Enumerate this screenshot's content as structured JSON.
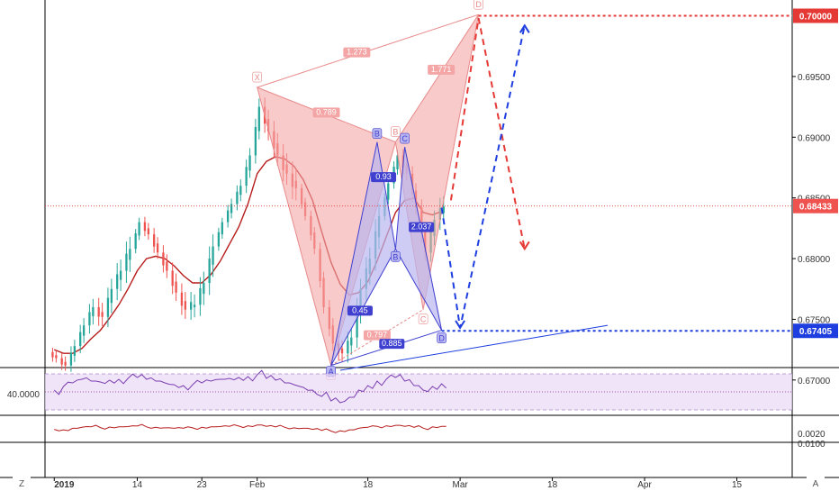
{
  "colors": {
    "up": "#26a69a",
    "down": "#ef5350",
    "ma": "#b71c1c",
    "pattern_fill": "#f4a6a6",
    "pattern_edge": "#e88a8a",
    "abcd_fill": "#b9b6ef",
    "abcd_edge": "#3f3fd0",
    "target_red": "#e53935",
    "target_blue": "#1e3ee0",
    "rsi_band": "#e9d9f7"
  },
  "chart_data": [
    {
      "type": "candlestick",
      "title": "",
      "price_axis": {
        "ticks": [
          "0.70000",
          "0.69500",
          "0.69000",
          "0.68500",
          "0.68000",
          "0.67500",
          "0.67000"
        ],
        "tick_values": [
          0.7,
          0.695,
          0.69,
          0.685,
          0.68,
          0.675,
          0.67
        ],
        "ylim": [
          0.6711,
          0.7013
        ]
      },
      "price_labels": [
        {
          "text": "0.70000",
          "value": 0.7,
          "color": "#e53935"
        },
        {
          "text": "0.68433",
          "value": 0.68433,
          "color": "#ef5350"
        },
        {
          "text": "0.67405",
          "value": 0.67405,
          "color": "#1e3ee0"
        }
      ],
      "time_axis": {
        "ticks": [
          {
            "label": "2019",
            "bold": true,
            "index": 0
          },
          {
            "label": "14",
            "index": 9
          },
          {
            "label": "23",
            "index": 16
          },
          {
            "label": "Feb",
            "index": 22
          },
          {
            "label": "18",
            "index": 34
          },
          {
            "label": "Mar",
            "index": 44
          },
          {
            "label": "18",
            "index": 54
          },
          {
            "label": "Apr",
            "index": 64
          },
          {
            "label": "15",
            "index": 74
          }
        ],
        "xlim": [
          -1,
          80
        ]
      },
      "close": [
        0.6718,
        0.6712,
        0.6728,
        0.6745,
        0.676,
        0.6752,
        0.6775,
        0.679,
        0.6808,
        0.683,
        0.682,
        0.6805,
        0.679,
        0.6772,
        0.6758,
        0.6762,
        0.678,
        0.681,
        0.683,
        0.6845,
        0.686,
        0.6885,
        0.6925,
        0.6905,
        0.6885,
        0.687,
        0.6858,
        0.6835,
        0.6808,
        0.676,
        0.673,
        0.6722,
        0.6735,
        0.6775,
        0.68,
        0.6835,
        0.6862,
        0.6885,
        0.687,
        0.6842,
        0.6805,
        0.6832,
        0.6843
      ],
      "series": [
        {
          "name": "",
          "kind": "ma",
          "values": [
            0.6725,
            0.6722,
            0.6722,
            0.6726,
            0.6734,
            0.6741,
            0.6751,
            0.6762,
            0.6775,
            0.679,
            0.68,
            0.6802,
            0.68,
            0.6794,
            0.6786,
            0.678,
            0.678,
            0.6787,
            0.6798,
            0.6812,
            0.6826,
            0.6845,
            0.687,
            0.688,
            0.6884,
            0.6882,
            0.6876,
            0.6865,
            0.6848,
            0.6822,
            0.6797,
            0.6779,
            0.677,
            0.6772,
            0.6781,
            0.6798,
            0.6818,
            0.6838,
            0.6848,
            0.685,
            0.6838,
            0.6836,
            0.6839
          ]
        }
      ],
      "harmonic": {
        "points": [
          {
            "label": "X",
            "index": 22,
            "value": 0.6941
          },
          {
            "label": "A",
            "index": 30,
            "value": 0.6712
          },
          {
            "label": "B",
            "index": 37,
            "value": 0.6896
          },
          {
            "label": "C",
            "index": 40,
            "value": 0.6758
          },
          {
            "label": "D",
            "index": 46,
            "value": 0.7001
          }
        ],
        "ratios": [
          "1.273",
          "1.771",
          "0.789",
          "0.797"
        ]
      },
      "abcd": {
        "points": [
          {
            "label": "A",
            "index": 30,
            "value": 0.6712
          },
          {
            "label": "B",
            "index": 35,
            "value": 0.6896
          },
          {
            "label": "C",
            "index": 38,
            "value": 0.6892
          },
          {
            "label": "D",
            "index": 42,
            "value": 0.6741
          }
        ],
        "ratios": [
          "0.45",
          "0.93",
          "2.037",
          "0.885"
        ]
      }
    },
    {
      "type": "line",
      "title": "",
      "ylabel_ticks": [
        "40.0000"
      ],
      "ylim": [
        25,
        75
      ],
      "values": [
        52,
        56,
        60,
        64,
        62,
        61,
        63,
        64,
        65,
        66,
        64,
        62,
        60,
        58,
        57,
        58,
        60,
        62,
        64,
        65,
        66,
        67,
        69,
        65,
        63,
        60,
        58,
        55,
        52,
        45,
        40,
        38,
        44,
        52,
        57,
        62,
        64,
        66,
        62,
        57,
        52,
        56,
        59
      ]
    },
    {
      "type": "line",
      "title": "",
      "ylabel_ticks": [
        "0.0020",
        "0.0100"
      ],
      "ylim": [
        -0.004,
        0.006
      ],
      "values": [
        0.0008,
        0.0006,
        0.0012,
        0.0016,
        0.0018,
        0.0015,
        0.0017,
        0.0018,
        0.0019,
        0.0021,
        0.0018,
        0.0016,
        0.0014,
        0.0012,
        0.0012,
        0.0014,
        0.0016,
        0.0018,
        0.0019,
        0.002,
        0.0021,
        0.0022,
        0.0025,
        0.002,
        0.0018,
        0.0016,
        0.0014,
        0.0012,
        0.0008,
        0.0004,
        0.0001,
        0.0002,
        0.0006,
        0.0012,
        0.0016,
        0.002,
        0.0022,
        0.0024,
        0.002,
        0.0016,
        0.0013,
        0.0018,
        0.002
      ]
    }
  ],
  "bottom_bar": {
    "left_btn": "Z",
    "right_btn": "A"
  }
}
